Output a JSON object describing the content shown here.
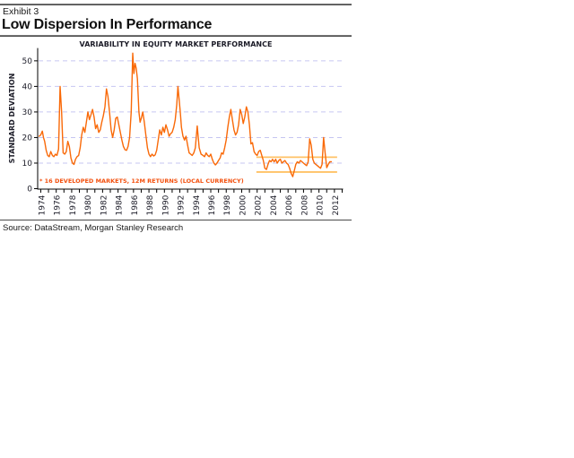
{
  "page": {
    "exhibit_label": "Exhibit 3",
    "title": "Low Dispersion In Performance",
    "source": "Source: DataStream, Morgan Stanley Research"
  },
  "colors": {
    "series": "#f96908",
    "band": "#ffc266",
    "gridline": "#c6c6f2",
    "footnote": "#f3500e",
    "axis": "#000000",
    "text": "#1c1c28",
    "rule": "#4a4a4a"
  },
  "chart_data": {
    "type": "line",
    "title": "VARIABILITY IN EQUITY MARKET PERFORMANCE",
    "ylabel": "STANDARD DEVIATION",
    "xlabel": "",
    "footnote": "* 16 DEVELOPED MARKETS, 12M RETURNS (LOCAL CURRENCY)",
    "grid": "horizontal-dashed",
    "legend": "none",
    "xlim": [
      1973.6,
      2013.0
    ],
    "ylim": [
      0,
      55
    ],
    "yticks": [
      0,
      10,
      20,
      30,
      40,
      50
    ],
    "xtick_labels": [
      "1974",
      "1976",
      "1978",
      "1980",
      "1982",
      "1984",
      "1986",
      "1988",
      "1990",
      "1992",
      "1994",
      "1996",
      "1998",
      "2000",
      "2002",
      "2004",
      "2006",
      "2008",
      "2010",
      "2012"
    ],
    "xticks_minor_range": [
      1974,
      2013
    ],
    "reference_band": {
      "from_x": 2001.9,
      "to_x": 2012.35,
      "upper": 12.3,
      "lower": 6.5
    },
    "series": [
      {
        "name": "dispersion-of-16-developed-markets",
        "points": [
          [
            1973.8,
            20.5
          ],
          [
            1974.0,
            21
          ],
          [
            1974.2,
            22.5
          ],
          [
            1974.35,
            20
          ],
          [
            1974.5,
            18.5
          ],
          [
            1974.7,
            15
          ],
          [
            1974.9,
            13
          ],
          [
            1975.1,
            12.5
          ],
          [
            1975.3,
            14.5
          ],
          [
            1975.5,
            13
          ],
          [
            1975.7,
            12.5
          ],
          [
            1975.9,
            13.5
          ],
          [
            1976.1,
            13
          ],
          [
            1976.3,
            15.5
          ],
          [
            1976.5,
            40
          ],
          [
            1976.7,
            30
          ],
          [
            1976.9,
            14
          ],
          [
            1977.1,
            13.5
          ],
          [
            1977.3,
            14.5
          ],
          [
            1977.5,
            18.5
          ],
          [
            1977.7,
            16.5
          ],
          [
            1977.9,
            12
          ],
          [
            1978.1,
            10
          ],
          [
            1978.3,
            9.5
          ],
          [
            1978.5,
            11.5
          ],
          [
            1978.7,
            12.5
          ],
          [
            1978.9,
            13
          ],
          [
            1979.1,
            16
          ],
          [
            1979.3,
            21
          ],
          [
            1979.5,
            24
          ],
          [
            1979.7,
            22
          ],
          [
            1979.9,
            26
          ],
          [
            1980.1,
            30
          ],
          [
            1980.3,
            27
          ],
          [
            1980.5,
            29
          ],
          [
            1980.7,
            31
          ],
          [
            1980.9,
            28
          ],
          [
            1981.1,
            23.5
          ],
          [
            1981.3,
            25
          ],
          [
            1981.5,
            22
          ],
          [
            1981.7,
            23
          ],
          [
            1981.9,
            26
          ],
          [
            1982.1,
            28.5
          ],
          [
            1982.3,
            32
          ],
          [
            1982.5,
            39
          ],
          [
            1982.7,
            36
          ],
          [
            1982.9,
            30
          ],
          [
            1983.1,
            23
          ],
          [
            1983.3,
            20
          ],
          [
            1983.5,
            23
          ],
          [
            1983.7,
            27.5
          ],
          [
            1983.9,
            28
          ],
          [
            1984.1,
            25
          ],
          [
            1984.3,
            22
          ],
          [
            1984.5,
            19
          ],
          [
            1984.7,
            16.5
          ],
          [
            1984.9,
            15.2
          ],
          [
            1985.1,
            15
          ],
          [
            1985.3,
            16.5
          ],
          [
            1985.5,
            20
          ],
          [
            1985.7,
            30
          ],
          [
            1985.9,
            53
          ],
          [
            1986.05,
            45
          ],
          [
            1986.2,
            49
          ],
          [
            1986.35,
            47
          ],
          [
            1986.5,
            43
          ],
          [
            1986.7,
            30
          ],
          [
            1986.85,
            26
          ],
          [
            1987.0,
            27.5
          ],
          [
            1987.2,
            30
          ],
          [
            1987.4,
            26
          ],
          [
            1987.6,
            21
          ],
          [
            1987.8,
            16
          ],
          [
            1988.0,
            13.5
          ],
          [
            1988.2,
            12.5
          ],
          [
            1988.4,
            13.5
          ],
          [
            1988.6,
            12.8
          ],
          [
            1988.8,
            13.2
          ],
          [
            1989.0,
            15
          ],
          [
            1989.2,
            19
          ],
          [
            1989.4,
            23
          ],
          [
            1989.6,
            21
          ],
          [
            1989.8,
            24
          ],
          [
            1990.0,
            22
          ],
          [
            1990.2,
            25
          ],
          [
            1990.4,
            23
          ],
          [
            1990.6,
            20.5
          ],
          [
            1990.8,
            21.5
          ],
          [
            1991.0,
            22
          ],
          [
            1991.2,
            24
          ],
          [
            1991.4,
            27
          ],
          [
            1991.6,
            33
          ],
          [
            1991.75,
            40
          ],
          [
            1991.9,
            35
          ],
          [
            1992.05,
            30
          ],
          [
            1992.2,
            24
          ],
          [
            1992.4,
            20.5
          ],
          [
            1992.6,
            19
          ],
          [
            1992.8,
            20.5
          ],
          [
            1993.0,
            17
          ],
          [
            1993.2,
            14
          ],
          [
            1993.4,
            13.5
          ],
          [
            1993.6,
            13
          ],
          [
            1993.8,
            14
          ],
          [
            1994.0,
            16
          ],
          [
            1994.25,
            24.5
          ],
          [
            1994.5,
            16
          ],
          [
            1994.75,
            13.5
          ],
          [
            1995.0,
            13
          ],
          [
            1995.2,
            12.5
          ],
          [
            1995.4,
            14
          ],
          [
            1995.6,
            13
          ],
          [
            1995.8,
            12.5
          ],
          [
            1996.0,
            13.5
          ],
          [
            1996.2,
            11.5
          ],
          [
            1996.4,
            10
          ],
          [
            1996.6,
            9.3
          ],
          [
            1996.8,
            10
          ],
          [
            1997.0,
            11
          ],
          [
            1997.2,
            12
          ],
          [
            1997.4,
            14
          ],
          [
            1997.6,
            13.5
          ],
          [
            1997.8,
            16
          ],
          [
            1998.0,
            19
          ],
          [
            1998.2,
            24
          ],
          [
            1998.4,
            28
          ],
          [
            1998.6,
            31
          ],
          [
            1998.8,
            27
          ],
          [
            1999.0,
            23
          ],
          [
            1999.2,
            21
          ],
          [
            1999.4,
            22
          ],
          [
            1999.6,
            25
          ],
          [
            1999.8,
            31
          ],
          [
            2000.0,
            29
          ],
          [
            2000.2,
            25.5
          ],
          [
            2000.4,
            28
          ],
          [
            2000.6,
            32
          ],
          [
            2000.8,
            30
          ],
          [
            2001.0,
            25
          ],
          [
            2001.2,
            17.5
          ],
          [
            2001.4,
            18
          ],
          [
            2001.6,
            14.5
          ],
          [
            2001.8,
            13.5
          ],
          [
            2002.0,
            13
          ],
          [
            2002.2,
            14.5
          ],
          [
            2002.4,
            15
          ],
          [
            2002.6,
            13
          ],
          [
            2002.8,
            11
          ],
          [
            2003.0,
            8
          ],
          [
            2003.2,
            7.5
          ],
          [
            2003.4,
            9.5
          ],
          [
            2003.6,
            11
          ],
          [
            2003.8,
            10.5
          ],
          [
            2004.0,
            11.5
          ],
          [
            2004.2,
            10.5
          ],
          [
            2004.4,
            11.5
          ],
          [
            2004.6,
            10
          ],
          [
            2004.8,
            11
          ],
          [
            2005.0,
            11.5
          ],
          [
            2005.2,
            10
          ],
          [
            2005.4,
            10.5
          ],
          [
            2005.6,
            11
          ],
          [
            2005.8,
            10
          ],
          [
            2006.0,
            9.5
          ],
          [
            2006.2,
            8
          ],
          [
            2006.4,
            6
          ],
          [
            2006.6,
            4.7
          ],
          [
            2006.8,
            7
          ],
          [
            2007.0,
            9.5
          ],
          [
            2007.2,
            10.5
          ],
          [
            2007.4,
            10
          ],
          [
            2007.6,
            11
          ],
          [
            2007.8,
            10.5
          ],
          [
            2008.0,
            10
          ],
          [
            2008.2,
            9.5
          ],
          [
            2008.4,
            9
          ],
          [
            2008.6,
            10.5
          ],
          [
            2008.8,
            19.5
          ],
          [
            2009.0,
            17
          ],
          [
            2009.2,
            11.5
          ],
          [
            2009.4,
            10
          ],
          [
            2009.6,
            9.5
          ],
          [
            2009.8,
            9
          ],
          [
            2010.0,
            8.5
          ],
          [
            2010.2,
            8
          ],
          [
            2010.4,
            9.5
          ],
          [
            2010.6,
            20
          ],
          [
            2010.8,
            14
          ],
          [
            2011.0,
            8.2
          ],
          [
            2011.2,
            9.5
          ],
          [
            2011.4,
            10.5
          ],
          [
            2011.6,
            10.5
          ]
        ]
      }
    ]
  }
}
